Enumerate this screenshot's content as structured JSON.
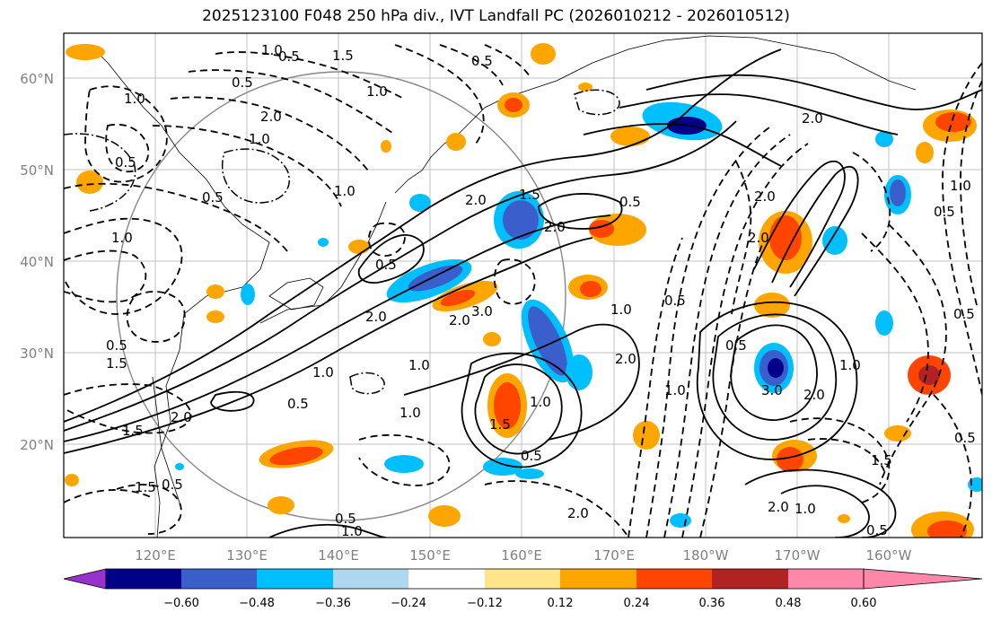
{
  "title": "2025123100 F048 250 hPa div., IVT Landfall PC (2026010212 - 2026010512)",
  "longitude_labels": [
    "120°E",
    "130°E",
    "140°E",
    "150°E",
    "160°E",
    "170°E",
    "180°W",
    "170°W",
    "160°W"
  ],
  "latitude_labels": [
    "60°N",
    "50°N",
    "40°N",
    "30°N",
    "20°N"
  ],
  "colorbar": {
    "ticks": [
      "−0.60",
      "−0.48",
      "−0.36",
      "−0.24",
      "−0.12",
      "0.12",
      "0.24",
      "0.36",
      "0.48",
      "0.60"
    ],
    "colors": [
      "#9932cc",
      "#00008b",
      "#3a5fcd",
      "#00bfff",
      "#add8f0",
      "#ffffff",
      "#ffe58a",
      "#ffa500",
      "#ff4500",
      "#b22222",
      "#ff88aa"
    ]
  },
  "contour_labels": [
    "1.0",
    "0.5",
    "1.5",
    "0.5",
    "2.0",
    "1.0",
    "1.0",
    "0.5",
    "1.0",
    "0.5",
    "2.0",
    "0.5",
    "2.0",
    "0.5",
    "1.0",
    "1.0",
    "2.0",
    "2.0",
    "3.0",
    "2.0",
    "0.5",
    "1.0",
    "1.0",
    "0.5",
    "1.5",
    "1.0",
    "2.0",
    "1.0",
    "2.0",
    "1.0",
    "3.0",
    "2.0",
    "1.5",
    "0.5",
    "0.5",
    "0.5",
    "1.5",
    "2.0",
    "0.5",
    "1.0",
    "0.5",
    "1.5",
    "0.5",
    "1.0",
    "1.0",
    "2.0",
    "0.5",
    "2.0",
    "1.0",
    "2.0",
    "0.5",
    "1.0",
    "1.5",
    "0.5",
    "1.5",
    "0.5"
  ]
}
